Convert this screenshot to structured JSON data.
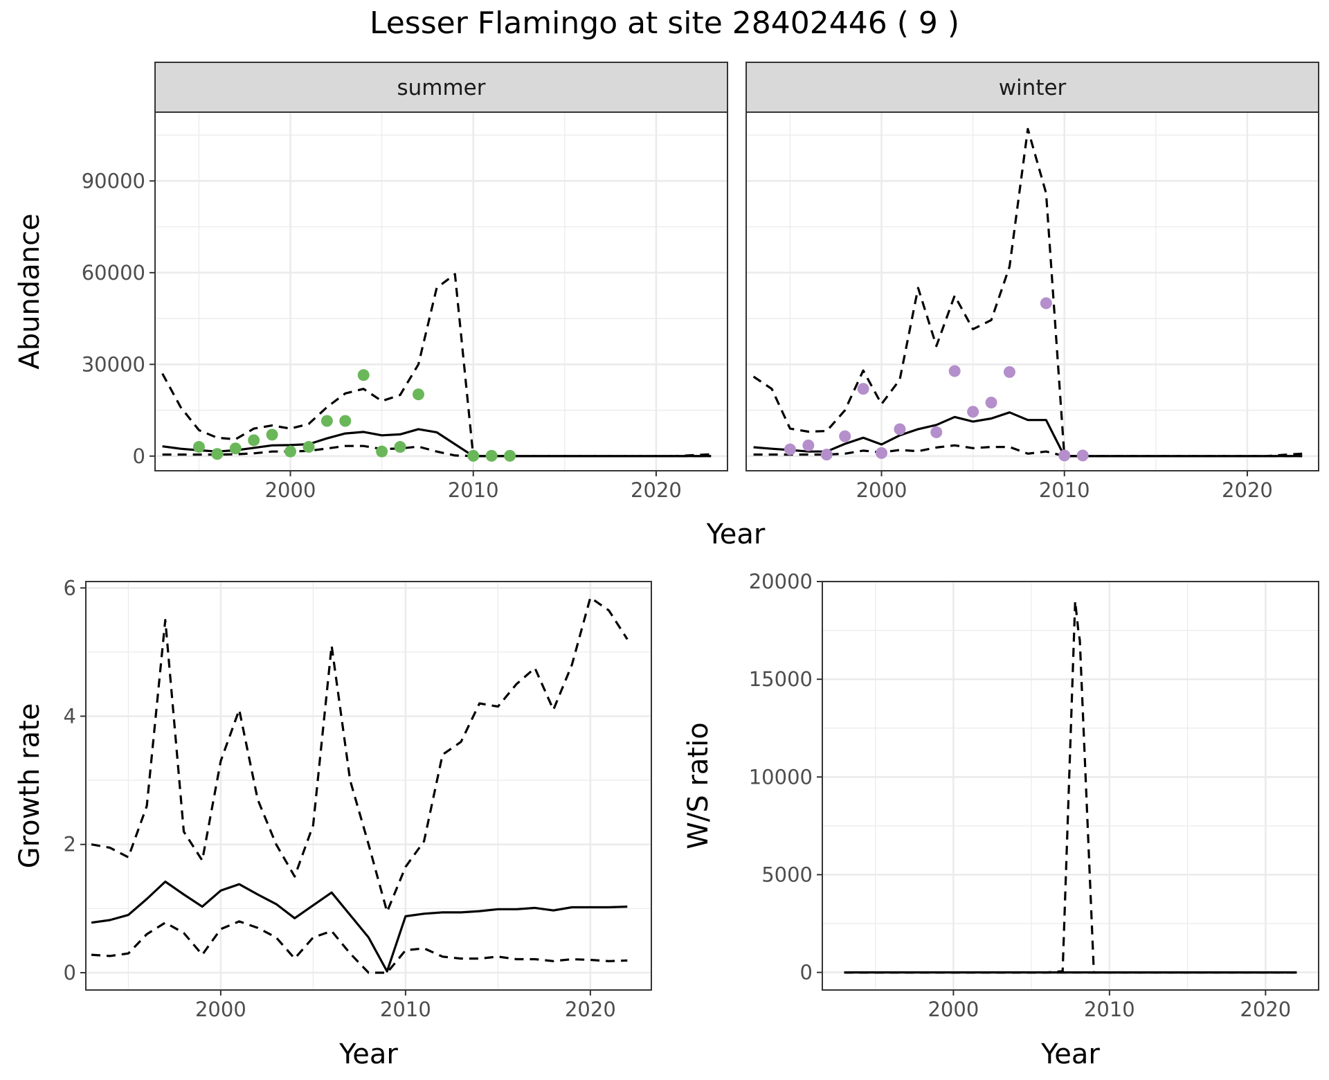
{
  "title": "Lesser Flamingo at site 28402446 ( 9 )",
  "colors": {
    "summer_points": "#6ab75a",
    "winter_points": "#b48fcb",
    "lines": "#000000"
  },
  "chart_data": [
    {
      "type": "line",
      "panel": "summer",
      "facet_label": "summer",
      "xlabel": "Year",
      "ylabel": "Abundance",
      "xlim": [
        1992.6,
        2023.9
      ],
      "ylim": [
        -4800,
        112500
      ],
      "x_ticks": [
        2000,
        2010,
        2020
      ],
      "y_ticks": [
        0,
        30000,
        60000,
        90000
      ],
      "grid": true,
      "observed_points": {
        "x": [
          1995,
          1996,
          1997,
          1998,
          1999,
          2000,
          2001,
          2002,
          2003,
          2004,
          2005,
          2006,
          2007,
          2010,
          2011,
          2012
        ],
        "y": [
          3000,
          700,
          2500,
          5200,
          7000,
          1500,
          3000,
          11500,
          11500,
          26500,
          1500,
          3000,
          20200,
          100,
          100,
          100
        ]
      },
      "series": [
        {
          "role": "mean",
          "style": "solid",
          "x": [
            1993,
            1994,
            1995,
            1996,
            1997,
            1998,
            1999,
            2000,
            2001,
            2002,
            2003,
            2004,
            2005,
            2006,
            2007,
            2008,
            2009,
            2010,
            2011,
            2012,
            2013,
            2014,
            2015,
            2016,
            2017,
            2018,
            2019,
            2020,
            2021,
            2022,
            2023
          ],
          "y": [
            3200,
            2400,
            1900,
            1500,
            1900,
            2700,
            3500,
            3600,
            3900,
            5800,
            7400,
            7900,
            6800,
            7100,
            8800,
            7800,
            3900,
            0,
            0,
            0,
            0,
            0,
            0,
            0,
            0,
            0,
            0,
            0,
            0,
            0,
            0
          ]
        },
        {
          "role": "upper",
          "style": "dashed",
          "x": [
            1993,
            1994,
            1995,
            1996,
            1997,
            1998,
            1999,
            2000,
            2001,
            2002,
            2003,
            2004,
            2005,
            2006,
            2007,
            2008,
            2009,
            2010,
            2011,
            2012,
            2013,
            2014,
            2015,
            2016,
            2017,
            2018,
            2019,
            2020,
            2021,
            2022,
            2023
          ],
          "y": [
            27000,
            16000,
            8500,
            6000,
            5500,
            9000,
            10000,
            9000,
            10500,
            16000,
            20500,
            22000,
            18000,
            20000,
            30000,
            55000,
            59500,
            0,
            0,
            0,
            0,
            0,
            0,
            0,
            0,
            0,
            0,
            0,
            0,
            300,
            600
          ]
        },
        {
          "role": "lower",
          "style": "dashed",
          "x": [
            1993,
            1994,
            1995,
            1996,
            1997,
            1998,
            1999,
            2000,
            2001,
            2002,
            2003,
            2004,
            2005,
            2006,
            2007,
            2008,
            2009,
            2010,
            2011,
            2012,
            2013,
            2014,
            2015,
            2016,
            2017,
            2018,
            2019,
            2020,
            2021,
            2022,
            2023
          ],
          "y": [
            500,
            500,
            500,
            500,
            600,
            900,
            1500,
            1500,
            1700,
            2500,
            3300,
            3300,
            2300,
            2500,
            3100,
            1500,
            200,
            0,
            0,
            0,
            0,
            0,
            0,
            0,
            0,
            0,
            0,
            0,
            0,
            0,
            0
          ]
        }
      ]
    },
    {
      "type": "line",
      "panel": "winter",
      "facet_label": "winter",
      "xlabel": "Year",
      "ylabel": "",
      "xlim": [
        1992.6,
        2023.9
      ],
      "ylim": [
        -4800,
        112500
      ],
      "x_ticks": [
        2000,
        2010,
        2020
      ],
      "y_ticks": [
        0,
        30000,
        60000,
        90000
      ],
      "grid": true,
      "observed_points": {
        "x": [
          1995,
          1996,
          1997,
          1998,
          1999,
          2000,
          2001,
          2003,
          2004,
          2005,
          2006,
          2007,
          2009,
          2010,
          2011
        ],
        "y": [
          2200,
          3500,
          500,
          6500,
          22000,
          1000,
          8800,
          7800,
          27800,
          14500,
          17500,
          27500,
          50000,
          200,
          200
        ]
      },
      "series": [
        {
          "role": "mean",
          "style": "solid",
          "x": [
            1993,
            1994,
            1995,
            1996,
            1997,
            1998,
            1999,
            2000,
            2001,
            2002,
            2003,
            2004,
            2005,
            2006,
            2007,
            2008,
            2009,
            2010,
            2011,
            2012,
            2013,
            2014,
            2015,
            2016,
            2017,
            2018,
            2019,
            2020,
            2021,
            2022,
            2023
          ],
          "y": [
            2900,
            2400,
            2000,
            1500,
            1500,
            4000,
            6000,
            3800,
            6800,
            8800,
            10200,
            12800,
            11300,
            12300,
            14300,
            11800,
            11800,
            0,
            0,
            0,
            0,
            0,
            0,
            0,
            0,
            0,
            0,
            0,
            0,
            0,
            0
          ]
        },
        {
          "role": "upper",
          "style": "dashed",
          "x": [
            1993,
            1994,
            1995,
            1996,
            1997,
            1998,
            1999,
            2000,
            2001,
            2002,
            2003,
            2004,
            2005,
            2006,
            2007,
            2008,
            2009,
            2010,
            2011,
            2012,
            2013,
            2014,
            2015,
            2016,
            2017,
            2018,
            2019,
            2020,
            2021,
            2022,
            2023
          ],
          "y": [
            26000,
            22000,
            9000,
            8000,
            8200,
            15000,
            28000,
            17000,
            25000,
            55000,
            36000,
            52500,
            41500,
            44500,
            62000,
            107000,
            86000,
            0,
            0,
            0,
            0,
            0,
            0,
            0,
            0,
            0,
            0,
            0,
            0,
            400,
            800
          ]
        },
        {
          "role": "lower",
          "style": "dashed",
          "x": [
            1993,
            1994,
            1995,
            1996,
            1997,
            1998,
            1999,
            2000,
            2001,
            2002,
            2003,
            2004,
            2005,
            2006,
            2007,
            2008,
            2009,
            2010,
            2011,
            2012,
            2013,
            2014,
            2015,
            2016,
            2017,
            2018,
            2019,
            2020,
            2021,
            2022,
            2023
          ],
          "y": [
            500,
            500,
            500,
            500,
            500,
            800,
            1800,
            1200,
            2000,
            1600,
            2800,
            3500,
            2600,
            3000,
            3000,
            800,
            1500,
            0,
            0,
            0,
            0,
            0,
            0,
            0,
            0,
            0,
            0,
            0,
            0,
            0,
            0
          ]
        }
      ]
    },
    {
      "type": "line",
      "panel": "growth",
      "xlabel": "Year",
      "ylabel": "Growth rate",
      "xlim": [
        1992.7,
        2023.3
      ],
      "ylim": [
        -0.27,
        6.1
      ],
      "x_ticks": [
        2000,
        2010,
        2020
      ],
      "y_ticks": [
        0,
        2,
        4,
        6
      ],
      "grid": true,
      "series": [
        {
          "role": "mean",
          "style": "solid",
          "x": [
            1993,
            1994,
            1995,
            1996,
            1997,
            1998,
            1999,
            2000,
            2001,
            2002,
            2003,
            2004,
            2005,
            2006,
            2007,
            2008,
            2009,
            2010,
            2011,
            2012,
            2013,
            2014,
            2015,
            2016,
            2017,
            2018,
            2019,
            2020,
            2021,
            2022
          ],
          "y": [
            0.78,
            0.82,
            0.9,
            1.15,
            1.42,
            1.22,
            1.03,
            1.28,
            1.38,
            1.22,
            1.07,
            0.85,
            1.05,
            1.25,
            0.9,
            0.55,
            0.02,
            0.88,
            0.92,
            0.94,
            0.94,
            0.96,
            0.99,
            0.99,
            1.01,
            0.97,
            1.02,
            1.02,
            1.02,
            1.03
          ]
        },
        {
          "role": "upper",
          "style": "dashed",
          "x": [
            1993,
            1994,
            1995,
            1996,
            1997,
            1998,
            1999,
            2000,
            2001,
            2002,
            2003,
            2004,
            2005,
            2006,
            2007,
            2008,
            2009,
            2010,
            2011,
            2012,
            2013,
            2014,
            2015,
            2016,
            2017,
            2018,
            2019,
            2020,
            2021,
            2022
          ],
          "y": [
            2.0,
            1.95,
            1.8,
            2.6,
            5.5,
            2.2,
            1.75,
            3.3,
            4.1,
            2.7,
            2.0,
            1.5,
            2.3,
            5.1,
            3.0,
            2.0,
            0.95,
            1.65,
            2.05,
            3.4,
            3.6,
            4.2,
            4.15,
            4.5,
            4.75,
            4.1,
            4.8,
            5.85,
            5.65,
            5.2
          ]
        },
        {
          "role": "lower",
          "style": "dashed",
          "x": [
            1993,
            1994,
            1995,
            1996,
            1997,
            1998,
            1999,
            2000,
            2001,
            2002,
            2003,
            2004,
            2005,
            2006,
            2007,
            2008,
            2009,
            2010,
            2011,
            2012,
            2013,
            2014,
            2015,
            2016,
            2017,
            2018,
            2019,
            2020,
            2021,
            2022
          ],
          "y": [
            0.28,
            0.26,
            0.3,
            0.6,
            0.78,
            0.62,
            0.28,
            0.68,
            0.8,
            0.7,
            0.55,
            0.22,
            0.55,
            0.65,
            0.3,
            0.0,
            0.0,
            0.35,
            0.38,
            0.25,
            0.22,
            0.22,
            0.25,
            0.21,
            0.21,
            0.18,
            0.21,
            0.2,
            0.18,
            0.19
          ]
        }
      ]
    },
    {
      "type": "line",
      "panel": "ratio",
      "xlabel": "Year",
      "ylabel": "W/S ratio",
      "xlim": [
        1991.6,
        2023.4
      ],
      "ylim": [
        -900,
        20000
      ],
      "x_ticks": [
        2000,
        2010,
        2020
      ],
      "y_ticks": [
        0,
        5000,
        10000,
        15000,
        20000
      ],
      "grid": true,
      "series": [
        {
          "role": "mean",
          "style": "solid",
          "x": [
            1993,
            1994,
            1995,
            1996,
            1997,
            1998,
            1999,
            2000,
            2001,
            2002,
            2003,
            2004,
            2005,
            2006,
            2007,
            2008,
            2009,
            2010,
            2011,
            2012,
            2013,
            2014,
            2015,
            2016,
            2017,
            2018,
            2019,
            2020,
            2021,
            2022
          ],
          "y": [
            0,
            0,
            0,
            0,
            0,
            0,
            0,
            0,
            0,
            0,
            0,
            0,
            0,
            0,
            0,
            0,
            0,
            0,
            0,
            0,
            0,
            0,
            0,
            0,
            0,
            0,
            0,
            0,
            0,
            0
          ]
        },
        {
          "role": "upper",
          "style": "dashed",
          "x": [
            1993,
            1994,
            1995,
            1996,
            1997,
            1998,
            1999,
            2000,
            2001,
            2002,
            2003,
            2004,
            2005,
            2006,
            2007,
            2007.8,
            2008,
            2008.1,
            2009,
            2010,
            2011,
            2012,
            2013,
            2014,
            2015,
            2016,
            2017,
            2018,
            2019,
            2020,
            2021,
            2022
          ],
          "y": [
            0,
            0,
            0,
            0,
            0,
            0,
            0,
            0,
            0,
            0,
            0,
            0,
            0,
            0,
            60,
            19000,
            17500,
            17000,
            0,
            0,
            0,
            0,
            0,
            0,
            0,
            0,
            0,
            0,
            0,
            0,
            0,
            0
          ]
        },
        {
          "role": "lower",
          "style": "dashed",
          "x": [
            1993,
            1994,
            1995,
            1996,
            1997,
            1998,
            1999,
            2000,
            2001,
            2002,
            2003,
            2004,
            2005,
            2006,
            2007,
            2008,
            2009,
            2010,
            2011,
            2012,
            2013,
            2014,
            2015,
            2016,
            2017,
            2018,
            2019,
            2020,
            2021,
            2022
          ],
          "y": [
            0,
            0,
            0,
            0,
            0,
            0,
            0,
            0,
            0,
            0,
            0,
            0,
            0,
            0,
            0,
            0,
            0,
            0,
            0,
            0,
            0,
            0,
            0,
            0,
            0,
            0,
            0,
            0,
            0,
            0
          ]
        }
      ]
    }
  ]
}
